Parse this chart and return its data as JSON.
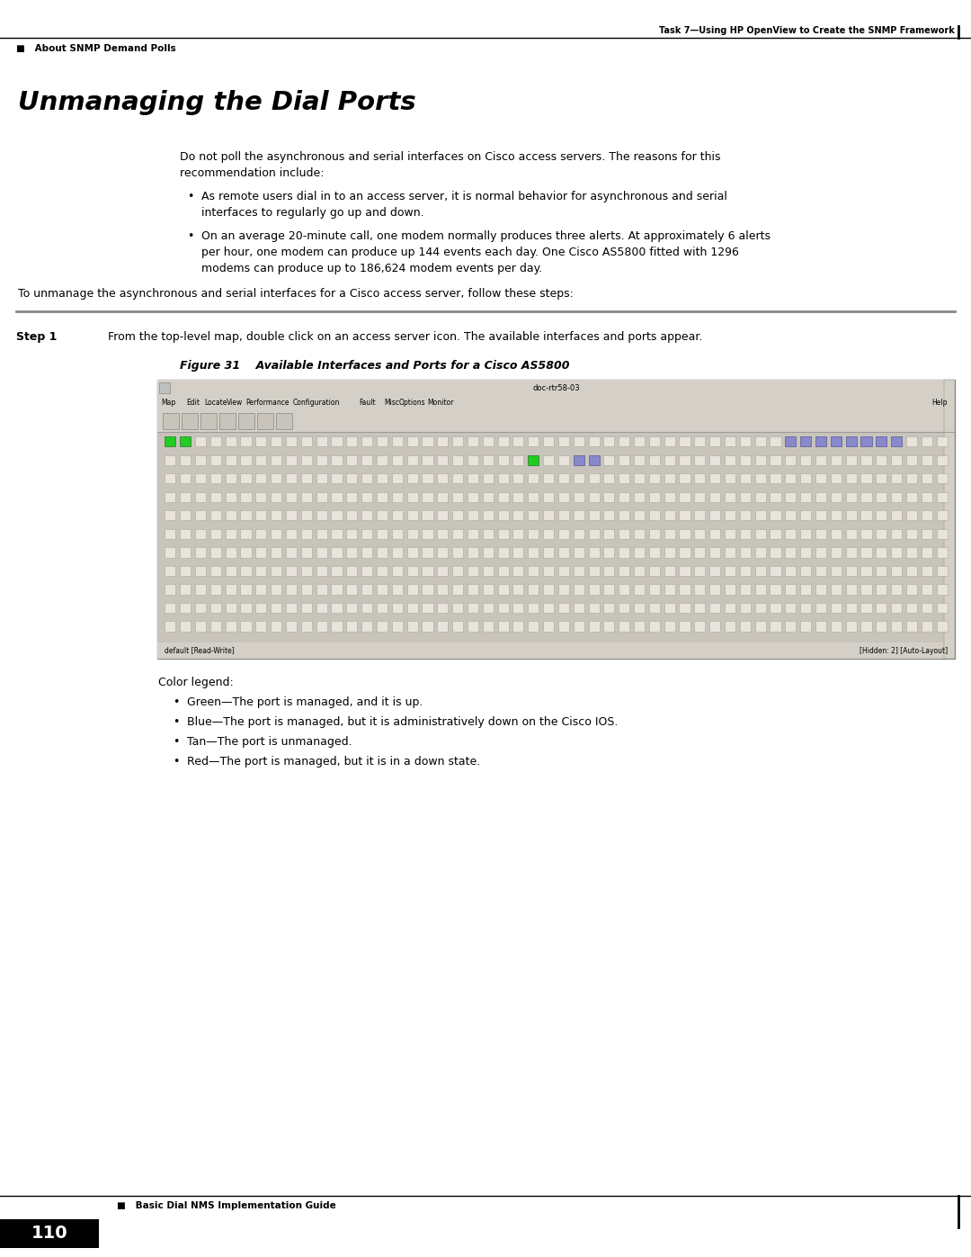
{
  "page_bg": "#ffffff",
  "header_right_text": "Task 7—Using HP OpenView to Create the SNMP Framework",
  "header_left_text": "■   About SNMP Demand Polls",
  "footer_left_text": "■   Basic Dial NMS Implementation Guide",
  "footer_page_num": "110",
  "section_title": "Unmanaging the Dial Ports",
  "intro_text1": "Do not poll the asynchronous and serial interfaces on Cisco access servers. The reasons for this",
  "intro_text2": "recommendation include:",
  "bullets": [
    [
      "As remote users dial in to an access server, it is normal behavior for asynchronous and serial",
      "interfaces to regularly go up and down."
    ],
    [
      "On an average 20-minute call, one modem normally produces three alerts. At approximately 6 alerts",
      "per hour, one modem can produce up 144 events each day. One Cisco AS5800 fitted with 1296",
      "modems can produce up to 186,624 modem events per day."
    ]
  ],
  "summary_text": "To unmanage the asynchronous and serial interfaces for a Cisco access server, follow these steps:",
  "step_label": "Step 1",
  "step_text": "From the top-level map, double click on an access server icon. The available interfaces and ports appear.",
  "figure_label": "Figure 31",
  "figure_title": "Available Interfaces and Ports for a Cisco AS5800",
  "screenshot_title": "doc-rtr58-03",
  "menu_items": [
    "Map",
    "Edit",
    "Locate",
    "View",
    "Performance",
    "Configuration",
    "Fault",
    "Misc",
    "Options",
    "Monitor",
    "Help"
  ],
  "color_legend_title": "Color legend:",
  "color_legend_items": [
    "Green—The port is managed, and it is up.",
    "Blue—The port is managed, but it is administratively down on the Cisco IOS.",
    "Tan—The port is unmanaged.",
    "Red—The port is managed, but it is in a down state."
  ],
  "green_ports_row0": [
    0,
    1
  ],
  "blue_ports_row0": [
    41,
    42,
    43,
    44,
    45,
    46,
    47,
    48
  ],
  "green_ports_row1": [
    24
  ],
  "blue_ports_row1": [
    27,
    28
  ],
  "port_cols": 52,
  "port_rows": 11
}
